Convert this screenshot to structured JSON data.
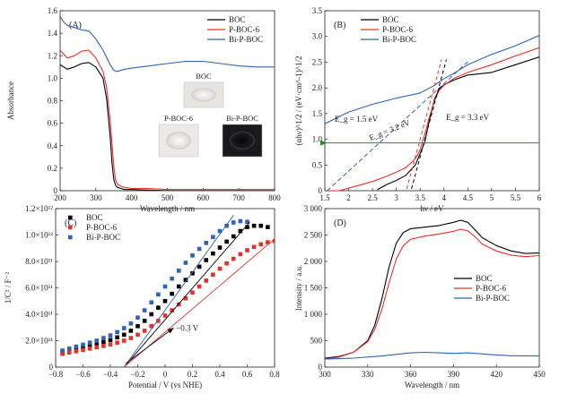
{
  "colors": {
    "boc": "#000000",
    "pboc": "#e8302a",
    "bipboc": "#2f62b8",
    "guide_green": "#2b8a2b"
  },
  "chart_data": [
    {
      "id": "A",
      "panel_label": "(A)",
      "type": "line",
      "xlabel": "Wavelength / nm",
      "ylabel": "Absorbance",
      "xlim": [
        200,
        800
      ],
      "ylim": [
        0,
        1.6
      ],
      "xticks": [
        200,
        300,
        400,
        500,
        600,
        700,
        800
      ],
      "yticks": [
        0,
        0.2,
        0.4,
        0.6,
        0.8,
        1.0,
        1.2,
        1.4,
        1.6
      ],
      "ytick_labels": [
        "0",
        "0.2",
        "0.4",
        "0.6",
        "0.8",
        "1.0",
        "1.2",
        "1.4",
        "1.6"
      ],
      "legend_position": "top-right",
      "series": [
        {
          "name": "BOC",
          "color": "#000000",
          "x": [
            200,
            220,
            240,
            260,
            280,
            300,
            320,
            330,
            340,
            345,
            350,
            355,
            360,
            370,
            380,
            400,
            500,
            600,
            700,
            800
          ],
          "y": [
            1.12,
            1.08,
            1.1,
            1.13,
            1.14,
            1.1,
            1.0,
            0.82,
            0.48,
            0.25,
            0.1,
            0.05,
            0.03,
            0.02,
            0.01,
            0.01,
            0.0,
            0.0,
            0.0,
            0.0
          ]
        },
        {
          "name": "P-BOC-6",
          "color": "#e8302a",
          "x": [
            200,
            220,
            240,
            260,
            280,
            300,
            320,
            330,
            340,
            350,
            355,
            360,
            370,
            380,
            400,
            450,
            500,
            600,
            700,
            800
          ],
          "y": [
            1.25,
            1.18,
            1.2,
            1.24,
            1.25,
            1.18,
            1.06,
            0.92,
            0.62,
            0.22,
            0.1,
            0.06,
            0.04,
            0.03,
            0.02,
            0.02,
            0.01,
            0.01,
            0.01,
            0.01
          ]
        },
        {
          "name": "Bi-P-BOC",
          "color": "#2f62b8",
          "x": [
            200,
            210,
            220,
            240,
            260,
            280,
            300,
            320,
            340,
            350,
            360,
            380,
            400,
            450,
            500,
            550,
            600,
            650,
            700,
            750,
            800
          ],
          "y": [
            1.55,
            1.5,
            1.47,
            1.45,
            1.43,
            1.42,
            1.35,
            1.25,
            1.12,
            1.07,
            1.06,
            1.08,
            1.09,
            1.11,
            1.13,
            1.15,
            1.15,
            1.13,
            1.11,
            1.1,
            1.1
          ]
        }
      ],
      "insets": [
        {
          "label": "BOC",
          "tone": "#e7e5e1"
        },
        {
          "label": "P-BOC-6",
          "tone": "#eceae6"
        },
        {
          "label": "Bi-P-BOC",
          "tone": "#1a1a1c"
        }
      ]
    },
    {
      "id": "B",
      "panel_label": "(B)",
      "type": "line",
      "xlabel": "hν / eV",
      "ylabel": "(αhν)^1/2 / (eV·cm^-1)^1/2",
      "xlim": [
        1.5,
        6.0
      ],
      "ylim": [
        0,
        3.5
      ],
      "xticks": [
        1.5,
        2.0,
        2.5,
        3.0,
        3.5,
        4.0,
        4.5,
        5.0,
        5.5,
        6.0
      ],
      "yticks": [
        0,
        0.5,
        1.0,
        1.5,
        2.0,
        2.5,
        3.0,
        3.5
      ],
      "ytick_labels": [
        "0",
        "0.5",
        "1.0",
        "1.5",
        "2.0",
        "2.5",
        "3.0",
        "3.5"
      ],
      "legend_position": "top-left",
      "series": [
        {
          "name": "BOC",
          "color": "#000000",
          "x": [
            2.6,
            2.8,
            3.0,
            3.2,
            3.4,
            3.6,
            3.7,
            3.8,
            3.9,
            4.0,
            4.2,
            4.5,
            5.0,
            5.5,
            6.0
          ],
          "y": [
            0.02,
            0.12,
            0.2,
            0.3,
            0.5,
            0.95,
            1.4,
            1.78,
            1.98,
            2.06,
            2.15,
            2.25,
            2.3,
            2.45,
            2.6
          ]
        },
        {
          "name": "P-BOC-6",
          "color": "#e8302a",
          "x": [
            1.5,
            1.8,
            2.0,
            2.2,
            2.5,
            2.8,
            3.0,
            3.2,
            3.4,
            3.5,
            3.6,
            3.7,
            3.8,
            3.9,
            4.0,
            4.2,
            4.5,
            5.0,
            5.5,
            6.0
          ],
          "y": [
            0.0,
            0.0,
            0.05,
            0.1,
            0.18,
            0.28,
            0.36,
            0.45,
            0.62,
            0.8,
            1.1,
            1.45,
            1.75,
            1.95,
            2.05,
            2.18,
            2.3,
            2.45,
            2.62,
            2.78
          ]
        },
        {
          "name": "Bi-P-BOC",
          "color": "#2f62b8",
          "x": [
            1.5,
            2.0,
            2.5,
            3.0,
            3.5,
            3.8,
            4.0,
            4.2,
            4.5,
            5.0,
            5.5,
            6.0
          ],
          "y": [
            1.3,
            1.53,
            1.68,
            1.8,
            1.9,
            2.05,
            2.18,
            2.28,
            2.45,
            2.65,
            2.82,
            3.02
          ]
        }
      ],
      "tangents": [
        {
          "color": "#000000",
          "x1": 3.25,
          "y1": -0.2,
          "x2": 4.05,
          "y2": 2.55,
          "dash": "4,3"
        },
        {
          "color": "#e8302a",
          "x1": 3.15,
          "y1": -0.2,
          "x2": 3.95,
          "y2": 2.55,
          "dash": "4,3"
        },
        {
          "color": "#2f62b8",
          "x1": 1.55,
          "y1": 0.0,
          "x2": 4.55,
          "y2": 2.55,
          "dash": "5,3"
        }
      ],
      "guide_line": {
        "y": 0.93,
        "x_from": 1.5,
        "x_to": 6.0,
        "color": "#2b8a2b"
      },
      "annotations": [
        {
          "text": "E_g = 1.5 eV",
          "color": "#2f62b8"
        },
        {
          "text": "E_g = 3.2 eV",
          "color": "#e8302a"
        },
        {
          "text": "E_g = 3.3 eV",
          "color": "#000000"
        }
      ]
    },
    {
      "id": "C",
      "panel_label": "(C)",
      "type": "scatter",
      "xlabel": "Potential / V (vs NHE)",
      "ylabel": "1/C² / F⁻²",
      "xlim": [
        -0.8,
        0.8
      ],
      "ylim": [
        0,
        1200000000000.0
      ],
      "xticks": [
        -0.8,
        -0.6,
        -0.4,
        -0.2,
        0.0,
        0.2,
        0.4,
        0.6,
        0.8
      ],
      "yticks": [
        0,
        200000000000.0,
        400000000000.0,
        600000000000.0,
        800000000000.0,
        1000000000000.0,
        1200000000000.0
      ],
      "ytick_labels": [
        "0",
        "2.0×10¹¹",
        "4.0×10¹¹",
        "6.0×10¹¹",
        "8.0×10¹¹",
        "1.0×10¹²",
        "1.2×10¹²"
      ],
      "legend_position": "top-left",
      "series": [
        {
          "name": "BOC",
          "color": "#000000",
          "x": [
            -0.75,
            -0.7,
            -0.65,
            -0.6,
            -0.55,
            -0.5,
            -0.45,
            -0.4,
            -0.35,
            -0.3,
            -0.25,
            -0.2,
            -0.15,
            -0.1,
            -0.05,
            0.0,
            0.05,
            0.1,
            0.15,
            0.2,
            0.25,
            0.3,
            0.35,
            0.4,
            0.45,
            0.5,
            0.55,
            0.6,
            0.65,
            0.7,
            0.75
          ],
          "y": [
            110000000000.0,
            125000000000.0,
            135000000000.0,
            150000000000.0,
            162000000000.0,
            175000000000.0,
            190000000000.0,
            205000000000.0,
            225000000000.0,
            245000000000.0,
            275000000000.0,
            310000000000.0,
            350000000000.0,
            400000000000.0,
            450000000000.0,
            500000000000.0,
            555000000000.0,
            610000000000.0,
            660000000000.0,
            710000000000.0,
            760000000000.0,
            810000000000.0,
            860000000000.0,
            905000000000.0,
            950000000000.0,
            990000000000.0,
            1030000000000.0,
            1060000000000.0,
            1070000000000.0,
            1070000000000.0,
            1060000000000.0
          ]
        },
        {
          "name": "P-BOC-6",
          "color": "#e8302a",
          "x": [
            -0.75,
            -0.7,
            -0.65,
            -0.6,
            -0.55,
            -0.5,
            -0.45,
            -0.4,
            -0.35,
            -0.3,
            -0.25,
            -0.2,
            -0.15,
            -0.1,
            -0.05,
            0.0,
            0.05,
            0.1,
            0.15,
            0.2,
            0.25,
            0.3,
            0.35,
            0.4,
            0.45,
            0.5,
            0.55,
            0.6,
            0.65,
            0.7,
            0.75,
            0.8
          ],
          "y": [
            100000000000.0,
            110000000000.0,
            120000000000.0,
            130000000000.0,
            140000000000.0,
            150000000000.0,
            160000000000.0,
            172000000000.0,
            185000000000.0,
            200000000000.0,
            220000000000.0,
            245000000000.0,
            275000000000.0,
            310000000000.0,
            350000000000.0,
            390000000000.0,
            430000000000.0,
            475000000000.0,
            520000000000.0,
            565000000000.0,
            610000000000.0,
            655000000000.0,
            700000000000.0,
            745000000000.0,
            785000000000.0,
            820000000000.0,
            855000000000.0,
            885000000000.0,
            910000000000.0,
            930000000000.0,
            945000000000.0,
            955000000000.0
          ]
        },
        {
          "name": "Bi-P-BOC",
          "color": "#2f62b8",
          "x": [
            -0.75,
            -0.7,
            -0.65,
            -0.6,
            -0.55,
            -0.5,
            -0.45,
            -0.4,
            -0.35,
            -0.3,
            -0.25,
            -0.2,
            -0.15,
            -0.1,
            -0.05,
            0.0,
            0.05,
            0.1,
            0.15,
            0.2,
            0.25,
            0.3,
            0.35,
            0.4,
            0.45,
            0.5,
            0.55,
            0.6
          ],
          "y": [
            125000000000.0,
            140000000000.0,
            155000000000.0,
            170000000000.0,
            185000000000.0,
            200000000000.0,
            220000000000.0,
            240000000000.0,
            265000000000.0,
            295000000000.0,
            330000000000.0,
            375000000000.0,
            430000000000.0,
            490000000000.0,
            550000000000.0,
            610000000000.0,
            670000000000.0,
            730000000000.0,
            790000000000.0,
            845000000000.0,
            895000000000.0,
            940000000000.0,
            985000000000.0,
            1030000000000.0,
            1070000000000.0,
            1095000000000.0,
            1105000000000.0,
            1100000000000.0
          ]
        }
      ],
      "fit_lines": [
        {
          "color": "#000000",
          "x1": -0.3,
          "y1": 0.0,
          "x2": 0.62,
          "y2": 1100000000000.0
        },
        {
          "color": "#e8302a",
          "x1": -0.3,
          "y1": 0.0,
          "x2": 0.8,
          "y2": 970000000000.0
        },
        {
          "color": "#2f62b8",
          "x1": -0.3,
          "y1": 0.0,
          "x2": 0.5,
          "y2": 1150000000000.0
        }
      ],
      "annotation": {
        "text": "−0.3 V",
        "x_value": -0.3
      }
    },
    {
      "id": "D",
      "panel_label": "(D)",
      "type": "line",
      "xlabel": "Wavelength / nm",
      "ylabel": "Intensity / a.u.",
      "xlim": [
        300,
        450
      ],
      "ylim": [
        0,
        3000
      ],
      "xticks": [
        300,
        330,
        360,
        390,
        420,
        450
      ],
      "yticks": [
        0,
        500,
        1000,
        1500,
        2000,
        2500,
        3000
      ],
      "ytick_labels": [
        "0",
        "500",
        "1 000",
        "1 500",
        "2 000",
        "2 500",
        "3 000"
      ],
      "legend_position": "center-right",
      "series": [
        {
          "name": "BOC",
          "color": "#000000",
          "x": [
            300,
            310,
            320,
            330,
            335,
            340,
            345,
            350,
            355,
            360,
            370,
            380,
            390,
            395,
            400,
            405,
            410,
            420,
            430,
            440,
            450
          ],
          "y": [
            170,
            200,
            280,
            500,
            800,
            1300,
            1900,
            2350,
            2550,
            2620,
            2650,
            2680,
            2740,
            2780,
            2740,
            2600,
            2450,
            2300,
            2200,
            2150,
            2160
          ]
        },
        {
          "name": "P-BOC-6",
          "color": "#e8302a",
          "x": [
            300,
            310,
            320,
            330,
            335,
            340,
            345,
            350,
            355,
            360,
            370,
            380,
            390,
            395,
            400,
            405,
            410,
            420,
            430,
            440,
            450
          ],
          "y": [
            150,
            190,
            280,
            480,
            720,
            1100,
            1600,
            2050,
            2300,
            2420,
            2480,
            2520,
            2570,
            2610,
            2580,
            2470,
            2330,
            2200,
            2120,
            2090,
            2110
          ]
        },
        {
          "name": "Bi-P-BOC",
          "color": "#2f62b8",
          "x": [
            300,
            320,
            340,
            350,
            360,
            370,
            380,
            390,
            400,
            410,
            420,
            430,
            450
          ],
          "y": [
            150,
            170,
            210,
            240,
            270,
            280,
            270,
            260,
            270,
            250,
            230,
            215,
            210
          ]
        }
      ]
    }
  ]
}
